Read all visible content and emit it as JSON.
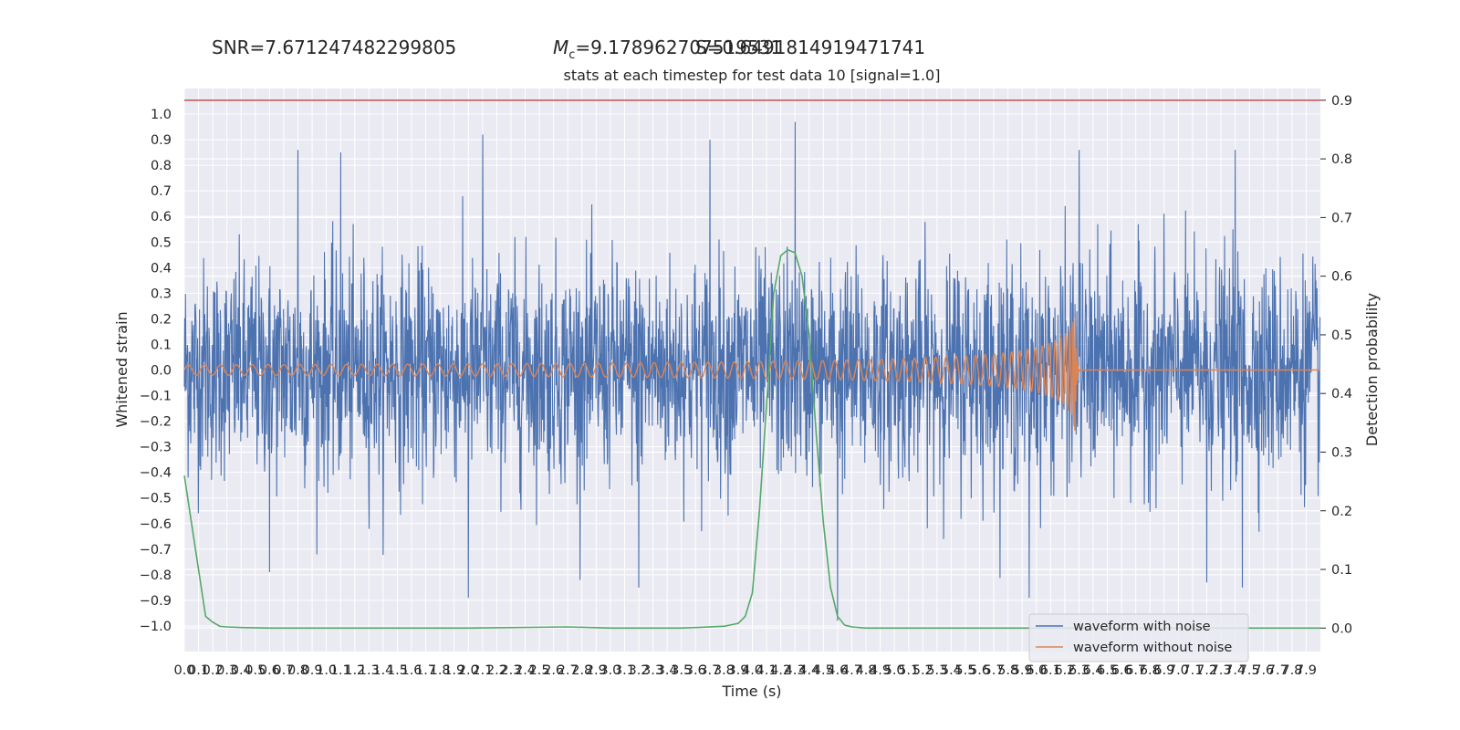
{
  "header": {
    "snr": "SNR=7.671247482299805",
    "mc_symbol": "M",
    "mc_sub": "c",
    "mc_value": "=9.178962707519531",
    "third_value": "S=0.6491814919471741"
  },
  "chart_data": {
    "type": "line",
    "title": "stats at each timestep for test data 10 [signal=1.0]",
    "xlabel": "Time (s)",
    "ylabel": "Whitened strain",
    "y2label": "Detection probability",
    "xlim": [
      0,
      8.0
    ],
    "ylim": [
      -1.1,
      1.1
    ],
    "y2lim": [
      -0.04,
      0.92
    ],
    "yticks": [
      -1.0,
      -0.9,
      -0.8,
      -0.7,
      -0.6,
      -0.5,
      -0.4,
      -0.3,
      -0.2,
      -0.1,
      0.0,
      0.1,
      0.2,
      0.3,
      0.4,
      0.5,
      0.6,
      0.7,
      0.8,
      0.9,
      1.0
    ],
    "ytick_labels": [
      "−1.0",
      "−0.9",
      "−0.8",
      "−0.7",
      "−0.6",
      "−0.5",
      "−0.4",
      "−0.3",
      "−0.2",
      "−0.1",
      "0.0",
      "0.1",
      "0.2",
      "0.3",
      "0.4",
      "0.5",
      "0.6",
      "0.7",
      "0.8",
      "0.9",
      "1.0"
    ],
    "y2ticks": [
      0.0,
      0.1,
      0.2,
      0.3,
      0.4,
      0.5,
      0.6,
      0.7,
      0.8,
      0.9
    ],
    "y2tick_labels": [
      "0.0",
      "0.1",
      "0.2",
      "0.3",
      "0.4",
      "0.5",
      "0.6",
      "0.7",
      "0.8",
      "0.9"
    ],
    "xticks": [
      0.0,
      0.1,
      0.2,
      0.3,
      0.4,
      0.5,
      0.6,
      0.7,
      0.8,
      0.9,
      1.0,
      1.1,
      1.2,
      1.3,
      1.4,
      1.5,
      1.6,
      1.7,
      1.8,
      1.9,
      2.0,
      2.1,
      2.2,
      2.3,
      2.4,
      2.5,
      2.6,
      2.7,
      2.8,
      2.9,
      3.0,
      3.1,
      3.2,
      3.3,
      3.4,
      3.5,
      3.6,
      3.7,
      3.8,
      3.9,
      4.0,
      4.1,
      4.2,
      4.3,
      4.4,
      4.5,
      4.6,
      4.7,
      4.8,
      4.9,
      5.0,
      5.1,
      5.2,
      5.3,
      5.4,
      5.5,
      5.6,
      5.7,
      5.8,
      5.9,
      6.0,
      6.1,
      6.2,
      6.3,
      6.4,
      6.5,
      6.6,
      6.7,
      6.8,
      6.9,
      7.0,
      7.1,
      7.2,
      7.3,
      7.4,
      7.5,
      7.6,
      7.7,
      7.8,
      7.9
    ],
    "xtick_labels": [
      "0.0",
      "0.1",
      "0.2",
      "0.3",
      "0.4",
      "0.5",
      "0.6",
      "0.7",
      "0.8",
      "0.9",
      "1.0",
      "1.1",
      "1.2",
      "1.3",
      "1.4",
      "1.5",
      "1.6",
      "1.7",
      "1.8",
      "1.9",
      "2.0",
      "2.1",
      "2.2",
      "2.3",
      "2.4",
      "2.5",
      "2.6",
      "2.7",
      "2.8",
      "2.9",
      "3.0",
      "3.1",
      "3.2",
      "3.3",
      "3.4",
      "3.5",
      "3.6",
      "3.7",
      "3.8",
      "3.9",
      "4.0",
      "4.1",
      "4.2",
      "4.3",
      "4.4",
      "4.5",
      "4.6",
      "4.7",
      "4.8",
      "4.9",
      "5.0",
      "5.1",
      "5.2",
      "5.3",
      "5.4",
      "5.5",
      "5.6",
      "5.7",
      "5.8",
      "5.9",
      "6.0",
      "6.1",
      "6.2",
      "6.3",
      "6.4",
      "6.5",
      "6.6",
      "6.7",
      "6.8",
      "6.9",
      "7.0",
      "7.1",
      "7.2",
      "7.3",
      "7.4",
      "7.5",
      "7.6",
      "7.7",
      "7.8",
      "7.9"
    ],
    "grid": true,
    "legend_position": "lower-right",
    "series": [
      {
        "name": "waveform with noise",
        "axis": "left",
        "color": "#4c72b0",
        "envelope_note": "dense noise, peaks to about 0.95 at t=4.3 and troughs to about -0.97 at t=4.6",
        "peak_t": [
          0.8,
          1.1,
          2.1,
          3.7,
          4.3,
          6.3,
          7.4
        ],
        "peak_y": [
          0.86,
          0.85,
          0.92,
          0.9,
          0.97,
          0.86,
          0.86
        ],
        "trough_t": [
          0.6,
          2.0,
          3.2,
          4.6,
          5.95,
          7.2,
          7.45
        ],
        "trough_y": [
          -0.79,
          -0.89,
          -0.85,
          -0.98,
          -0.89,
          -0.83,
          -0.85
        ]
      },
      {
        "name": "waveform without noise",
        "axis": "left",
        "color": "#dd8452",
        "chirp_start_t": 0.0,
        "merger_t": 6.27,
        "start_amplitude": 0.02,
        "peak_amplitude": 0.23,
        "min_value": -0.31
      },
      {
        "name": "",
        "axis": "right",
        "color": "#55a868",
        "t": [
          0.0,
          0.05,
          0.1,
          0.15,
          0.2,
          0.25,
          0.3,
          0.4,
          0.6,
          1.0,
          2.0,
          2.7,
          3.0,
          3.5,
          3.8,
          3.9,
          3.95,
          4.0,
          4.05,
          4.1,
          4.15,
          4.2,
          4.25,
          4.3,
          4.35,
          4.4,
          4.45,
          4.5,
          4.55,
          4.6,
          4.65,
          4.7,
          4.75,
          4.8,
          5.0,
          6.0,
          7.0,
          8.0
        ],
        "y": [
          0.26,
          0.18,
          0.1,
          0.02,
          0.01,
          0.003,
          0.002,
          0.001,
          0.0,
          0.0,
          0.0,
          0.002,
          0.0,
          0.0,
          0.003,
          0.008,
          0.02,
          0.06,
          0.2,
          0.38,
          0.57,
          0.635,
          0.645,
          0.64,
          0.6,
          0.5,
          0.33,
          0.18,
          0.07,
          0.02,
          0.005,
          0.002,
          0.001,
          0.0,
          0.0,
          0.0,
          0.0,
          0.0
        ]
      }
    ],
    "threshold": {
      "axis": "right",
      "value": 0.9,
      "color": "#c44e52"
    }
  }
}
